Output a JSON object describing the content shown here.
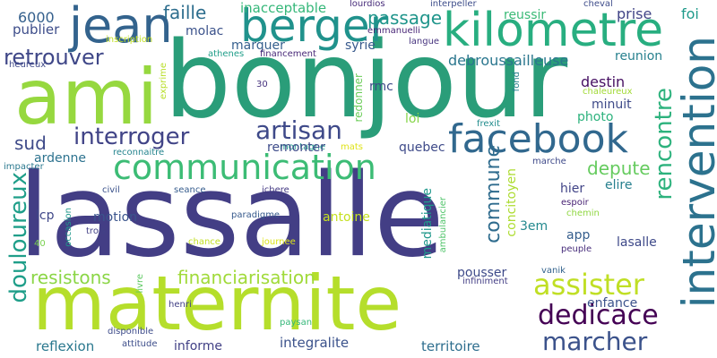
{
  "words": [
    {
      "text": "lassalle",
      "color": "#433e85"
    },
    {
      "text": "bonjour",
      "color": "#2a9d79"
    },
    {
      "text": "maternite",
      "color": "#b5de2b"
    },
    {
      "text": "ami",
      "color": "#96d83f"
    },
    {
      "text": "intervention",
      "color": "#2c728e"
    },
    {
      "text": "kilometre",
      "color": "#28ae80"
    },
    {
      "text": "berger",
      "color": "#20928c"
    },
    {
      "text": "jean",
      "color": "#33638d"
    },
    {
      "text": "communication",
      "color": "#3cbc75"
    },
    {
      "text": "facebook",
      "color": "#31688e"
    },
    {
      "text": "dedicace",
      "color": "#440154"
    },
    {
      "text": "assister",
      "color": "#c0df25"
    },
    {
      "text": "marcher",
      "color": "#3b528b"
    },
    {
      "text": "interroger",
      "color": "#414487"
    },
    {
      "text": "artisan",
      "color": "#3e4989"
    },
    {
      "text": "doulooureux",
      "color": "#1f9e89"
    },
    {
      "text": "retrouver",
      "color": "#3f4788"
    },
    {
      "text": "commune",
      "color": "#2f6c8e"
    },
    {
      "text": "rencontre",
      "color": "#2db27d"
    },
    {
      "text": "financiarisation",
      "color": "#a0da39"
    },
    {
      "text": "resistons",
      "color": "#8bd646"
    },
    {
      "text": "depute",
      "color": "#65cb5e"
    },
    {
      "text": "sud",
      "color": "#3e4a89"
    },
    {
      "text": "faille",
      "color": "#2e6e8e"
    },
    {
      "text": "passage",
      "color": "#1f958b"
    },
    {
      "text": "inacceptable",
      "color": "#35b779"
    },
    {
      "text": "6000",
      "color": "#35608d"
    },
    {
      "text": "publier",
      "color": "#3d4d8a"
    },
    {
      "text": "molac",
      "color": "#3b528b"
    },
    {
      "text": "marquer",
      "color": "#355f8d"
    },
    {
      "text": "syrie",
      "color": "#38598c"
    },
    {
      "text": "debroussailleuse",
      "color": "#2a768e"
    },
    {
      "text": "reunion",
      "color": "#27808e"
    },
    {
      "text": "reussir",
      "color": "#3aba76"
    },
    {
      "text": "prise",
      "color": "#414487"
    },
    {
      "text": "foi",
      "color": "#1f9a8a"
    },
    {
      "text": "cheval",
      "color": "#3e4c8a"
    },
    {
      "text": "lourdios",
      "color": "#472c7a"
    },
    {
      "text": "interpeller",
      "color": "#3d4d8a"
    },
    {
      "text": "emmanuelli",
      "color": "#482576"
    },
    {
      "text": "langue",
      "color": "#46337e"
    },
    {
      "text": "inscription",
      "color": "#c2df23"
    },
    {
      "text": "heureux",
      "color": "#3f4889"
    },
    {
      "text": "athenes",
      "color": "#1f9e89"
    },
    {
      "text": "financement",
      "color": "#482878"
    },
    {
      "text": "30",
      "color": "#46327e"
    },
    {
      "text": "redonner",
      "color": "#6ccd5a"
    },
    {
      "text": "rmc",
      "color": "#3e4a89"
    },
    {
      "text": "loi",
      "color": "#86d549"
    },
    {
      "text": "destin",
      "color": "#471063"
    },
    {
      "text": "minuit",
      "color": "#3e4a89"
    },
    {
      "text": "photo",
      "color": "#2db27d"
    },
    {
      "text": "exprime",
      "color": "#b8de29"
    },
    {
      "text": "fond",
      "color": "#27808e"
    },
    {
      "text": "chaleureux",
      "color": "#a2da37"
    },
    {
      "text": "frexit",
      "color": "#228c8d"
    },
    {
      "text": "quebec",
      "color": "#3e4a89"
    },
    {
      "text": "mats",
      "color": "#dfe318"
    },
    {
      "text": "montagne",
      "color": "#1e9b8a"
    },
    {
      "text": "reconnaitre",
      "color": "#25848e"
    },
    {
      "text": "remonter",
      "color": "#3e4c8a"
    },
    {
      "text": "impacter",
      "color": "#2a788e"
    },
    {
      "text": "ardenne",
      "color": "#2c728e"
    },
    {
      "text": "civil",
      "color": "#3b528b"
    },
    {
      "text": "seance",
      "color": "#365c8d"
    },
    {
      "text": "ichere",
      "color": "#443983"
    },
    {
      "text": "concitoyen",
      "color": "#addc30"
    },
    {
      "text": "marche",
      "color": "#3e4989"
    },
    {
      "text": "hier",
      "color": "#414487"
    },
    {
      "text": "elire",
      "color": "#27808e"
    },
    {
      "text": "espoir",
      "color": "#482374"
    },
    {
      "text": "chemin",
      "color": "#90d743"
    },
    {
      "text": "lcp",
      "color": "#3f4788"
    },
    {
      "text": "motion",
      "color": "#3a548c"
    },
    {
      "text": "antoine",
      "color": "#c5e021"
    },
    {
      "text": "3em",
      "color": "#23898e"
    },
    {
      "text": "mediatique",
      "color": "#1f988b"
    },
    {
      "text": "ambulancier",
      "color": "#50c46a"
    },
    {
      "text": "paradigme",
      "color": "#375a8c"
    },
    {
      "text": "trois",
      "color": "#424186"
    },
    {
      "text": "occasion",
      "color": "#1f988b"
    },
    {
      "text": "40",
      "color": "#7ad151"
    },
    {
      "text": "chance",
      "color": "#c2df23"
    },
    {
      "text": "journee",
      "color": "#dde318"
    },
    {
      "text": "app",
      "color": "#355e8d"
    },
    {
      "text": "lasalle",
      "color": "#3e4989"
    },
    {
      "text": "peuple",
      "color": "#472d7b"
    },
    {
      "text": "vanik",
      "color": "#33638d"
    },
    {
      "text": "pousser",
      "color": "#3e4a89"
    },
    {
      "text": "infiniment",
      "color": "#433e85"
    },
    {
      "text": "enfance",
      "color": "#3b528b"
    },
    {
      "text": "livre",
      "color": "#5ec962"
    },
    {
      "text": "henri",
      "color": "#424086"
    },
    {
      "text": "paysan",
      "color": "#35b779"
    },
    {
      "text": "disponible",
      "color": "#3e4c8a"
    },
    {
      "text": "reflexion",
      "color": "#2a788e"
    },
    {
      "text": "attitude",
      "color": "#3d4d8a"
    },
    {
      "text": "informe",
      "color": "#424186"
    },
    {
      "text": "integralite",
      "color": "#3b528b"
    },
    {
      "text": "territoire",
      "color": "#2e6e8e"
    }
  ]
}
